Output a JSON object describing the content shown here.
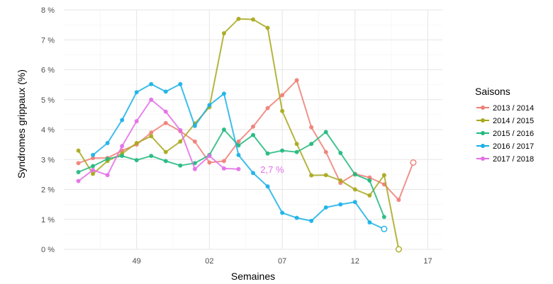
{
  "chart_data": {
    "type": "line",
    "xlabel": "Semaines",
    "ylabel": "Syndromes grippaux (%)",
    "ylim": [
      0,
      8
    ],
    "xlim": [
      44,
      70
    ],
    "x_ticks": [
      {
        "x": 49,
        "label": "49"
      },
      {
        "x": 54,
        "label": "02"
      },
      {
        "x": 59,
        "label": "07"
      },
      {
        "x": 64,
        "label": "12"
      },
      {
        "x": 69,
        "label": "17"
      }
    ],
    "y_ticks": [
      {
        "y": 0,
        "label": "0 %"
      },
      {
        "y": 1,
        "label": "1 %"
      },
      {
        "y": 2,
        "label": "2 %"
      },
      {
        "y": 3,
        "label": "3 %"
      },
      {
        "y": 4,
        "label": "4 %"
      },
      {
        "y": 5,
        "label": "5 %"
      },
      {
        "y": 6,
        "label": "6 %"
      },
      {
        "y": 7,
        "label": "7 %"
      },
      {
        "y": 8,
        "label": "8 %"
      }
    ],
    "grid": true,
    "legend": {
      "title": "Saisons",
      "position": "right"
    },
    "annotation": {
      "text": "2,7 %",
      "x": 57.5,
      "y": 2.68,
      "color": "#e36ee8"
    },
    "series": [
      {
        "name": "2013 / 2014",
        "color": "#ef7f77",
        "points": [
          [
            45,
            2.88
          ],
          [
            46,
            3.05
          ],
          [
            47,
            3.05
          ],
          [
            48,
            3.3
          ],
          [
            49,
            3.5
          ],
          [
            50,
            3.9
          ],
          [
            51,
            4.22
          ],
          [
            52,
            3.95
          ],
          [
            53,
            3.6
          ],
          [
            54,
            2.9
          ],
          [
            55,
            2.95
          ],
          [
            56,
            3.6
          ],
          [
            57,
            4.1
          ],
          [
            58,
            4.72
          ],
          [
            59,
            5.15
          ],
          [
            60,
            5.65
          ],
          [
            61,
            4.08
          ],
          [
            62,
            3.25
          ],
          [
            63,
            2.22
          ],
          [
            64,
            2.52
          ],
          [
            65,
            2.4
          ],
          [
            66,
            2.17
          ],
          [
            67,
            1.65
          ],
          [
            68,
            2.9
          ]
        ],
        "open_last": true
      },
      {
        "name": "2014 / 2015",
        "color": "#a8a81e",
        "points": [
          [
            45,
            3.3
          ],
          [
            46,
            2.52
          ],
          [
            47,
            2.95
          ],
          [
            48,
            3.2
          ],
          [
            49,
            3.55
          ],
          [
            50,
            3.78
          ],
          [
            51,
            3.25
          ],
          [
            52,
            3.6
          ],
          [
            53,
            4.2
          ],
          [
            54,
            4.75
          ],
          [
            55,
            7.22
          ],
          [
            56,
            7.7
          ],
          [
            57,
            7.68
          ],
          [
            58,
            7.4
          ],
          [
            59,
            4.62
          ],
          [
            60,
            3.52
          ],
          [
            61,
            2.47
          ],
          [
            62,
            2.48
          ],
          [
            63,
            2.3
          ],
          [
            64,
            2.0
          ],
          [
            65,
            1.8
          ],
          [
            66,
            2.48
          ],
          [
            67,
            0.0
          ]
        ],
        "open_last": true
      },
      {
        "name": "2015 / 2016",
        "color": "#22b97e",
        "points": [
          [
            45,
            2.58
          ],
          [
            46,
            2.78
          ],
          [
            47,
            3.02
          ],
          [
            48,
            3.12
          ],
          [
            49,
            2.98
          ],
          [
            50,
            3.12
          ],
          [
            51,
            2.95
          ],
          [
            52,
            2.8
          ],
          [
            53,
            2.88
          ],
          [
            54,
            3.15
          ],
          [
            55,
            4.0
          ],
          [
            56,
            3.47
          ],
          [
            57,
            3.82
          ],
          [
            58,
            3.2
          ],
          [
            59,
            3.3
          ],
          [
            60,
            3.25
          ],
          [
            61,
            3.52
          ],
          [
            62,
            3.92
          ],
          [
            63,
            3.22
          ],
          [
            64,
            2.5
          ],
          [
            65,
            2.3
          ],
          [
            66,
            1.08
          ]
        ],
        "open_last": false
      },
      {
        "name": "2016 / 2017",
        "color": "#1ab1e8",
        "points": [
          [
            46,
            3.15
          ],
          [
            47,
            3.55
          ],
          [
            48,
            4.32
          ],
          [
            49,
            5.25
          ],
          [
            50,
            5.52
          ],
          [
            51,
            5.27
          ],
          [
            52,
            5.52
          ],
          [
            53,
            4.12
          ],
          [
            54,
            4.82
          ],
          [
            55,
            5.2
          ],
          [
            56,
            3.15
          ],
          [
            57,
            2.55
          ],
          [
            58,
            2.1
          ],
          [
            59,
            1.22
          ],
          [
            60,
            1.05
          ],
          [
            61,
            0.95
          ],
          [
            62,
            1.4
          ],
          [
            63,
            1.5
          ],
          [
            64,
            1.58
          ],
          [
            65,
            0.9
          ],
          [
            66,
            0.68
          ]
        ],
        "open_last": true
      },
      {
        "name": "2017 / 2018",
        "color": "#e36ee8",
        "points": [
          [
            45,
            2.28
          ],
          [
            46,
            2.65
          ],
          [
            47,
            2.48
          ],
          [
            48,
            3.45
          ],
          [
            49,
            4.28
          ],
          [
            50,
            5.0
          ],
          [
            51,
            4.6
          ],
          [
            52,
            3.98
          ],
          [
            53,
            2.68
          ],
          [
            54,
            3.12
          ],
          [
            55,
            2.7
          ],
          [
            56,
            2.68
          ]
        ],
        "open_last": false
      }
    ]
  }
}
